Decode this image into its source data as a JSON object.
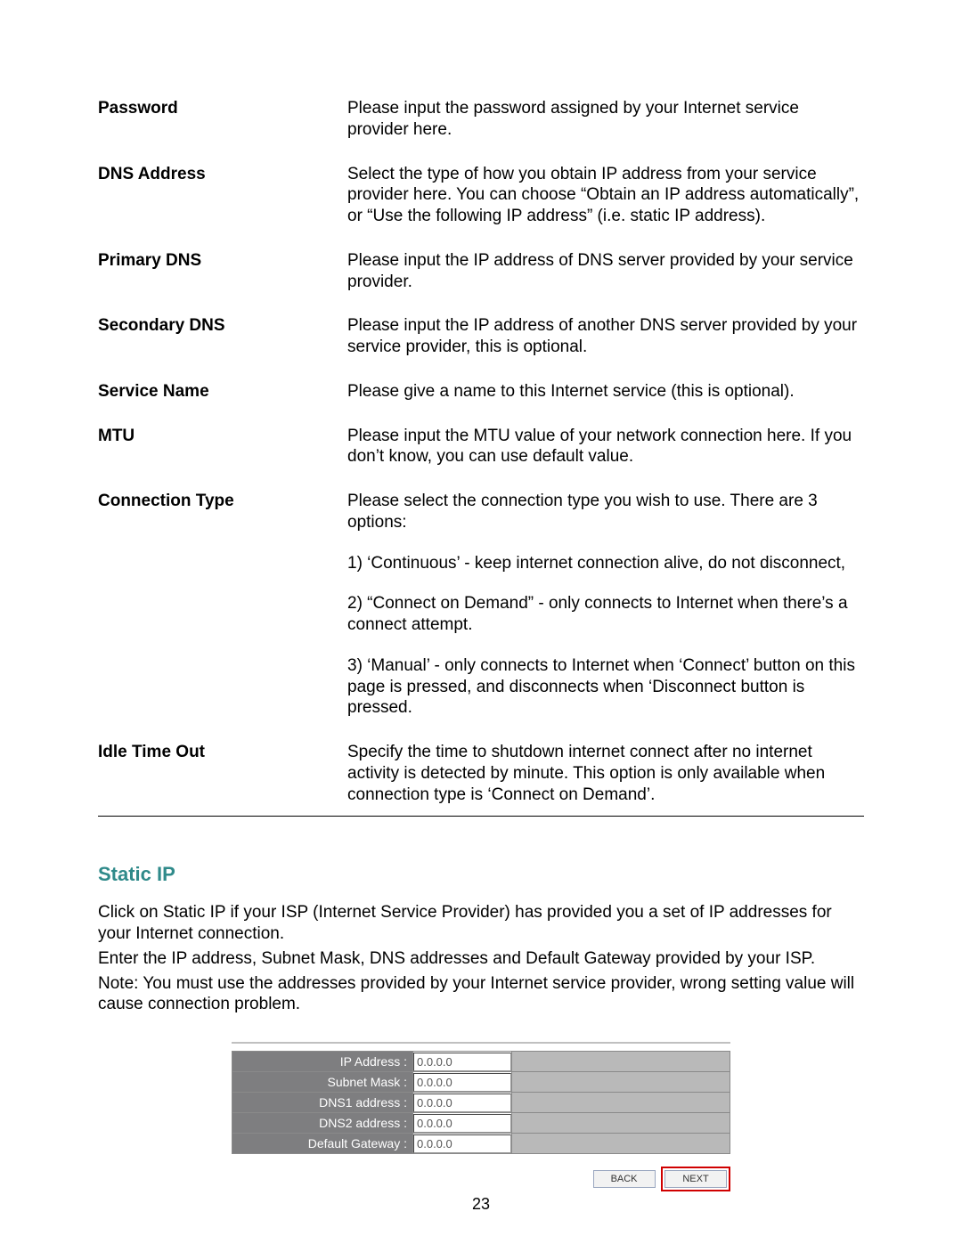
{
  "definitions": [
    {
      "term": "Password",
      "desc": "Please input the password assigned by your Internet service provider here."
    },
    {
      "term": "DNS Address",
      "desc": "Select the type of how you obtain IP address from your service provider here. You can choose “Obtain an IP address automatically”, or “Use the following IP address” (i.e. static IP address)."
    },
    {
      "term": "Primary DNS",
      "desc": "Please input the IP address of DNS server provided by your service provider."
    },
    {
      "term": "Secondary DNS",
      "desc": "Please input the IP address of another DNS server provided by your service provider, this is optional."
    },
    {
      "term": "Service Name",
      "desc": "Please give a name to this Internet service (this is optional)."
    },
    {
      "term": "MTU",
      "desc": "Please input the MTU value of your network connection here. If you don’t know, you can use default value."
    }
  ],
  "connection_type": {
    "term": "Connection Type",
    "intro": "Please select the connection type you wish to use. There are 3 options:",
    "opt1": "1) ‘Continuous’ - keep internet connection alive, do not disconnect,",
    "opt2": "2) “Connect on Demand” - only connects to Internet when there’s a connect attempt.",
    "opt3": "3) ‘Manual’ - only connects to Internet when ‘Connect’ button on this page is pressed, and disconnects when ‘Disconnect button is pressed."
  },
  "idle_timeout": {
    "term": "Idle Time Out",
    "desc": "Specify the time to shutdown internet connect after no internet activity is detected by minute. This option is only available when connection type is ‘Connect on Demand’."
  },
  "static_ip": {
    "title": "Static IP",
    "p1": "Click on Static IP if your ISP (Internet Service Provider) has provided you a set of IP addresses for your Internet connection.",
    "p2": "Enter the IP address, Subnet Mask, DNS addresses and Default Gateway provided by your ISP.",
    "p3": "Note: You must use the addresses provided by your Internet service provider, wrong setting value will cause connection problem."
  },
  "form": {
    "rows": [
      {
        "label": "IP Address :",
        "value": "0.0.0.0"
      },
      {
        "label": "Subnet Mask :",
        "value": "0.0.0.0"
      },
      {
        "label": "DNS1 address :",
        "value": "0.0.0.0"
      },
      {
        "label": "DNS2 address :",
        "value": "0.0.0.0"
      },
      {
        "label": "Default Gateway :",
        "value": "0.0.0.0"
      }
    ],
    "back_label": "BACK",
    "next_label": "NEXT"
  },
  "page_number": "23",
  "colors": {
    "section_title": "#2f8a8a",
    "form_label_bg": "#7e7e80",
    "form_row_bg": "#b9b9b9",
    "next_highlight": "#d00000"
  }
}
